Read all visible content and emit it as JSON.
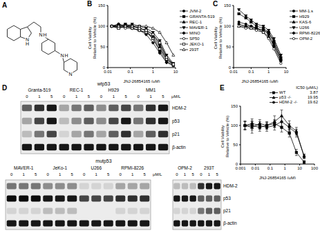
{
  "structure": {
    "panel": "A",
    "atom_labels": [
      [
        "N",
        "H"
      ],
      [
        "N",
        "H"
      ],
      [
        "N",
        "H"
      ],
      [
        "N"
      ]
    ]
  },
  "chart_data": [
    {
      "panel": "B",
      "type": "line",
      "x_label": "JNJ-26854165 (μM)",
      "y_label": [
        "Cell Viability",
        "Relative to Vehicle (%)"
      ],
      "log": "x",
      "xlim": [
        0.01,
        10
      ],
      "xticks": [
        0.01,
        0.1,
        1,
        10
      ],
      "ylim": [
        0,
        150
      ],
      "yticks": [
        0,
        50,
        100,
        150
      ],
      "grid": false,
      "legend": "right",
      "x": [
        0.015,
        0.03,
        0.06,
        0.12,
        0.25,
        0.5,
        1,
        2,
        4,
        8
      ],
      "series": [
        {
          "name": "JVM-2",
          "color": "#000000",
          "marker": "circle",
          "values": [
            100,
            105,
            100,
            100,
            95,
            90,
            80,
            55,
            25,
            8
          ]
        },
        {
          "name": "GRANTA-519",
          "color": "#000000",
          "marker": "square",
          "values": [
            100,
            100,
            105,
            100,
            95,
            90,
            70,
            40,
            15,
            5
          ]
        },
        {
          "name": "REC-1",
          "color": "#000000",
          "marker": "triangle",
          "values": [
            100,
            95,
            100,
            95,
            90,
            85,
            75,
            50,
            20,
            8
          ]
        },
        {
          "name": "MAVER-1",
          "color": "#000000",
          "marker": "triangle_down",
          "values": [
            100,
            100,
            100,
            105,
            100,
            95,
            85,
            65,
            30,
            10
          ]
        },
        {
          "name": "MINO",
          "color": "#000000",
          "marker": "diamond",
          "values": [
            100,
            105,
            100,
            95,
            90,
            80,
            60,
            35,
            12,
            5
          ]
        },
        {
          "name": "SP50",
          "color": "#000000",
          "marker": "circle_open",
          "values": [
            100,
            100,
            95,
            95,
            90,
            85,
            70,
            45,
            20,
            6
          ]
        },
        {
          "name": "JEKO-1",
          "color": "#000000",
          "marker": "square_open",
          "values": [
            100,
            95,
            100,
            100,
            95,
            90,
            80,
            60,
            25,
            8
          ]
        },
        {
          "name": "293T",
          "color": "#000000",
          "marker": "triangle_open",
          "values": [
            100,
            100,
            100,
            100,
            100,
            100,
            95,
            85,
            60,
            30
          ]
        }
      ]
    },
    {
      "panel": "C",
      "type": "line",
      "x_label": "JNJ-26854165 (μM)",
      "y_label": [
        "Cell Viability",
        "Relative to Vehicle (%)"
      ],
      "log": "x",
      "xlim": [
        0.01,
        10
      ],
      "xticks": [
        0.01,
        0.1,
        1,
        10
      ],
      "ylim": [
        0,
        150
      ],
      "yticks": [
        0,
        50,
        100,
        150
      ],
      "grid": false,
      "legend": "right",
      "x": [
        0.02,
        0.05,
        0.1,
        0.2,
        0.5,
        1,
        2,
        5
      ],
      "series": [
        {
          "name": "MM-1.s",
          "color": "#000000",
          "marker": "circle",
          "values": [
            110,
            105,
            100,
            95,
            90,
            80,
            50,
            15
          ]
        },
        {
          "name": "H929",
          "color": "#000000",
          "marker": "square",
          "values": [
            130,
            120,
            110,
            100,
            95,
            85,
            60,
            20
          ]
        },
        {
          "name": "KAS-6",
          "color": "#000000",
          "marker": "triangle",
          "values": [
            100,
            100,
            95,
            95,
            85,
            75,
            55,
            20
          ]
        },
        {
          "name": "U266",
          "color": "#000000",
          "marker": "triangle_down",
          "values": [
            140,
            125,
            115,
            105,
            100,
            90,
            70,
            30
          ]
        },
        {
          "name": "RPMI-8226",
          "color": "#000000",
          "marker": "diamond",
          "values": [
            105,
            100,
            100,
            95,
            90,
            85,
            65,
            25
          ]
        },
        {
          "name": "OPM-2",
          "color": "#000000",
          "marker": "circle_open",
          "values": [
            100,
            95,
            95,
            90,
            85,
            70,
            45,
            10
          ]
        }
      ]
    },
    {
      "panel": "E",
      "type": "line",
      "x_label": "JNJ-26854165 (μM)",
      "y_label": [
        "Cell Viability",
        "Relative to Vehicle (%)"
      ],
      "log": "x",
      "xlim": [
        0.001,
        100
      ],
      "xticks": [
        0.001,
        0.01,
        0.1,
        1,
        10,
        100
      ],
      "ylim": [
        0,
        150
      ],
      "yticks": [
        0,
        50,
        100,
        150
      ],
      "grid": false,
      "legend": "top_right",
      "legend_title": "IC50 (μM/L)",
      "x": [
        0.002,
        0.006,
        0.02,
        0.06,
        0.2,
        0.6,
        2,
        6,
        20
      ],
      "series": [
        {
          "name": "WT",
          "color": "#000000",
          "marker": "square",
          "ic50": 3.87,
          "values": [
            100,
            100,
            95,
            100,
            105,
            95,
            80,
            30,
            5
          ],
          "errors": [
            10,
            12,
            10,
            8,
            10,
            12,
            10,
            8,
            4
          ]
        },
        {
          "name": "p53 -/-",
          "color": "#000000",
          "marker": "triangle",
          "ic50": 19.95,
          "values": [
            100,
            95,
            105,
            100,
            110,
            125,
            100,
            85,
            20
          ],
          "errors": [
            12,
            15,
            10,
            10,
            15,
            15,
            12,
            10,
            6
          ]
        },
        {
          "name": "HDM-2 -/-",
          "color": "#000000",
          "marker": "circle",
          "ic50": 19.62,
          "values": [
            100,
            105,
            100,
            95,
            100,
            110,
            95,
            80,
            20
          ],
          "errors": [
            10,
            12,
            10,
            10,
            12,
            12,
            10,
            10,
            5
          ]
        }
      ]
    }
  ],
  "blots": {
    "panel": "D",
    "blots": [
      {
        "label": "wtp53",
        "rows": [
          "HDM-2",
          "p53",
          "p21",
          "β-actin"
        ],
        "panels": [
          {
            "unit": "μM/L",
            "groups": [
              {
                "name": "Granta-519",
                "doses": [
                  0,
                  1,
                  5
                ]
              },
              {
                "name": "REC-1",
                "doses": [
                  0,
                  1,
                  5
                ]
              },
              {
                "name": "H929",
                "doses": [
                  0,
                  1,
                  5
                ]
              },
              {
                "name": "MM1",
                "doses": [
                  0,
                  1,
                  5
                ]
              }
            ],
            "intensity": [
              [
                0.6,
                0.8,
                0.9,
                0.3,
                0.5,
                0.6,
                0.4,
                0.6,
                0.7,
                0.5,
                0.8,
                0.9
              ],
              [
                0.3,
                0.7,
                0.9,
                0.2,
                0.4,
                0.6,
                0.4,
                0.7,
                0.9,
                0.5,
                0.8,
                0.9
              ],
              [
                0.2,
                0.5,
                0.7,
                0.1,
                0.3,
                0.5,
                0.3,
                0.6,
                0.8,
                0.3,
                0.6,
                0.8
              ],
              [
                0.9,
                0.9,
                0.9,
                0.9,
                0.9,
                0.9,
                0.9,
                0.9,
                0.9,
                0.9,
                0.9,
                0.9
              ]
            ]
          }
        ]
      },
      {
        "label": "mutp53",
        "rows": [
          "HDM-2",
          "p53",
          "p21",
          "β-actin"
        ],
        "panels": [
          {
            "unit": "μM/L",
            "groups": [
              {
                "name": "MAVER-1",
                "doses": [
                  0,
                  1,
                  5
                ]
              },
              {
                "name": "JeKo-1",
                "doses": [
                  0,
                  1,
                  5
                ]
              },
              {
                "name": "U266",
                "doses": [
                  0,
                  1,
                  5
                ]
              },
              {
                "name": "RPMI-8226",
                "doses": [
                  0,
                  1,
                  5
                ]
              }
            ],
            "intensity": [
              [
                0.5,
                0.5,
                0.5,
                0.4,
                0.4,
                0.4,
                0.1,
                0.1,
                0.1,
                0.3,
                0.3,
                0.3
              ],
              [
                0.95,
                0.95,
                0.95,
                0.9,
                0.9,
                0.9,
                0.7,
                0.7,
                0.7,
                0.8,
                0.8,
                0.8
              ],
              [
                0.1,
                0.1,
                0.1,
                0.2,
                0.2,
                0.2,
                0,
                0,
                0,
                0.1,
                0.1,
                0.1
              ],
              [
                0.9,
                0.9,
                0.9,
                0.9,
                0.9,
                0.9,
                0.9,
                0.9,
                0.9,
                0.9,
                0.9,
                0.9
              ]
            ]
          },
          {
            "groups": [
              {
                "name": "OPM-2",
                "doses": [
                  0,
                  1,
                  5
                ]
              },
              {
                "name": "293T",
                "doses": [
                  0,
                  1,
                  5
                ]
              }
            ],
            "intensity": [
              [
                0.2,
                0.2,
                0.2,
                0.8,
                0.9,
                0.9
              ],
              [
                0.9,
                0.9,
                0.9,
                0.6,
                0.6,
                0.6
              ],
              [
                0.1,
                0.1,
                0.1,
                0.5,
                0.6,
                0.6
              ],
              [
                0.9,
                0.9,
                0.9,
                0.9,
                0.9,
                0.9
              ]
            ]
          }
        ]
      }
    ]
  }
}
